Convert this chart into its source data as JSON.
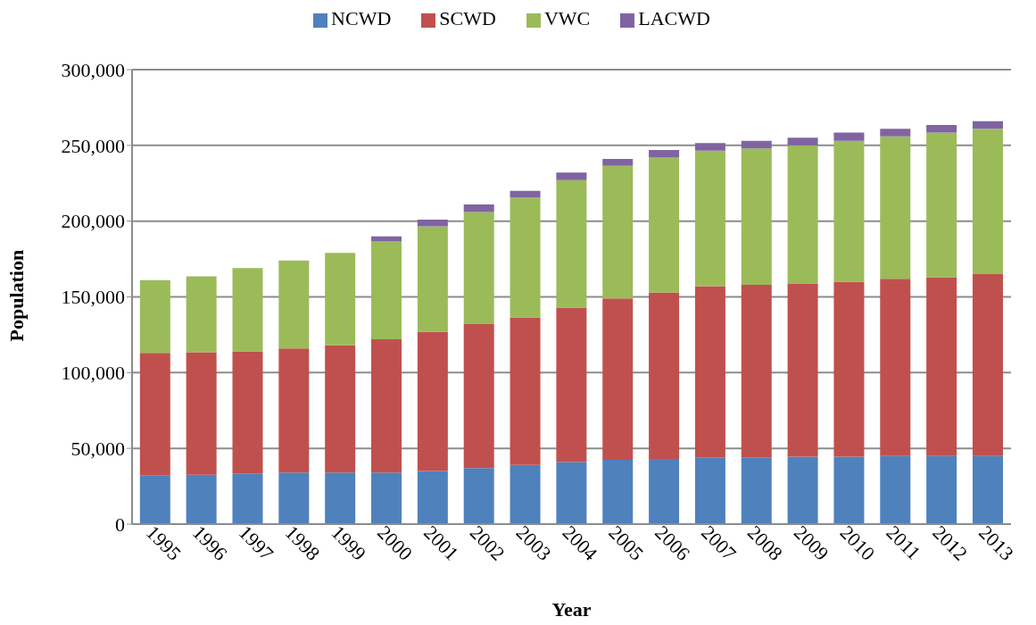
{
  "chart_data": {
    "type": "bar",
    "stacked": true,
    "xlabel": "Year",
    "ylabel": "Population",
    "categories": [
      "1995",
      "1996",
      "1997",
      "1998",
      "1999",
      "2000",
      "2001",
      "2002",
      "2003",
      "2004",
      "2005",
      "2006",
      "2007",
      "2008",
      "2009",
      "2010",
      "2011",
      "2012",
      "2013"
    ],
    "series": [
      {
        "name": "NCWD",
        "color": "#4f81bd",
        "values": [
          32000,
          32500,
          33500,
          34000,
          34000,
          34000,
          35000,
          37000,
          39000,
          41000,
          42500,
          43000,
          44000,
          44000,
          44500,
          44500,
          45000,
          45000,
          45000
        ]
      },
      {
        "name": "SCWD",
        "color": "#c0504d",
        "values": [
          81000,
          81000,
          80500,
          82000,
          84000,
          88000,
          92000,
          95000,
          97500,
          102000,
          106500,
          110000,
          113000,
          114000,
          114000,
          115500,
          117000,
          118000,
          120000
        ]
      },
      {
        "name": "VWC",
        "color": "#9bbb59",
        "values": [
          48000,
          50000,
          55000,
          58000,
          61000,
          64500,
          69500,
          74000,
          79000,
          84000,
          87500,
          89000,
          89500,
          90000,
          91500,
          93000,
          94000,
          95500,
          96000
        ]
      },
      {
        "name": "LACWD",
        "color": "#8064a2",
        "values": [
          null,
          null,
          null,
          null,
          null,
          3500,
          4500,
          5000,
          4500,
          5000,
          4500,
          5000,
          5000,
          5000,
          5000,
          5500,
          5000,
          5000,
          5000
        ]
      }
    ],
    "ylim": [
      0,
      300000
    ],
    "yticks": [
      0,
      {
        "value": 50000,
        "label": "50,000"
      },
      {
        "value": 100000,
        "label": "100,000"
      },
      {
        "value": 150000,
        "label": "150,000"
      },
      {
        "value": 200000,
        "label": "200,000"
      },
      {
        "value": 250000,
        "label": "250,000"
      },
      {
        "value": 300000,
        "label": "300,000"
      }
    ],
    "grid": "y",
    "legend": "top"
  }
}
